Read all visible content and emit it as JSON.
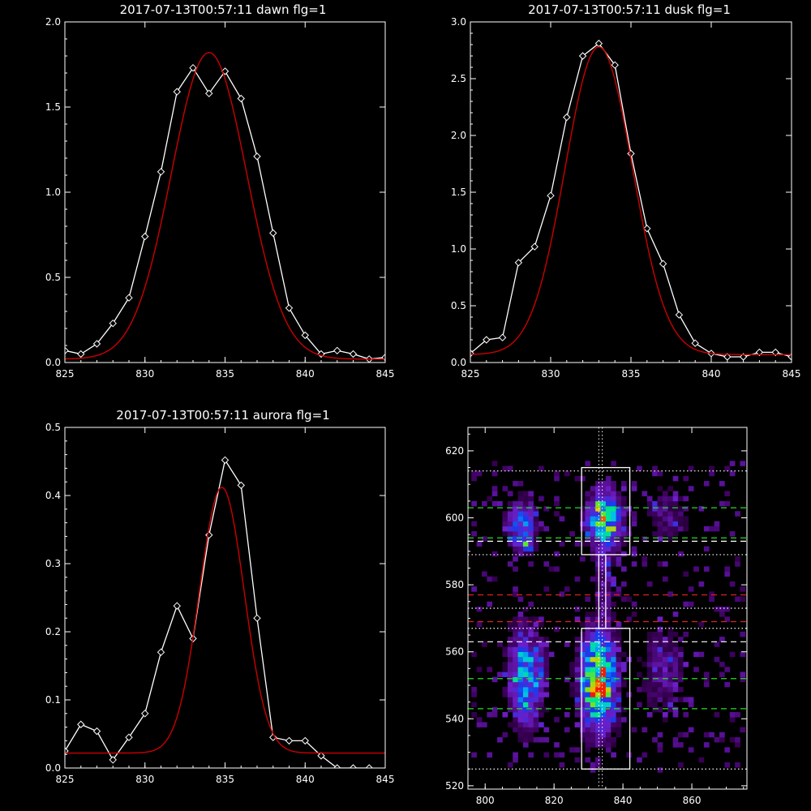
{
  "chart_data": [
    {
      "type": "line",
      "title": "2017-07-13T00:57:11 dawn flg=1",
      "xlim": [
        825,
        845
      ],
      "ylim": [
        0,
        2.0
      ],
      "x_ticks": [
        "825",
        "830",
        "835",
        "840",
        "845"
      ],
      "y_ticks": [
        "0.0",
        "0.5",
        "1.0",
        "1.5",
        "2.0"
      ],
      "series": [
        {
          "color": "#ffffff",
          "marker": "diamond",
          "x": [
            825,
            826,
            827,
            828,
            829,
            830,
            831,
            832,
            833,
            834,
            835,
            836,
            837,
            838,
            839,
            840,
            841,
            842,
            843,
            844,
            845
          ],
          "y": [
            0.07,
            0.05,
            0.11,
            0.23,
            0.38,
            0.74,
            1.12,
            1.59,
            1.73,
            1.58,
            1.71,
            1.55,
            1.21,
            0.76,
            0.32,
            0.16,
            0.05,
            0.07,
            0.05,
            0.02,
            0.03
          ]
        },
        {
          "color": "#cc0000",
          "curve": "gaussian",
          "peak": 1.8,
          "center": 834.0,
          "sigma": 2.35,
          "offset": 0.02
        }
      ]
    },
    {
      "type": "line",
      "title": "2017-07-13T00:57:11 dusk flg=1",
      "xlim": [
        825,
        845
      ],
      "ylim": [
        0,
        3.0
      ],
      "x_ticks": [
        "825",
        "830",
        "835",
        "840",
        "845"
      ],
      "y_ticks": [
        "0.0",
        "0.5",
        "1.0",
        "1.5",
        "2.0",
        "2.5",
        "3.0"
      ],
      "series": [
        {
          "color": "#ffffff",
          "marker": "diamond",
          "x": [
            825,
            826,
            827,
            828,
            829,
            830,
            831,
            832,
            833,
            834,
            835,
            836,
            837,
            838,
            839,
            840,
            841,
            842,
            843,
            844,
            845
          ],
          "y": [
            0.08,
            0.2,
            0.22,
            0.88,
            1.02,
            1.47,
            2.16,
            2.7,
            2.81,
            2.62,
            1.84,
            1.18,
            0.87,
            0.42,
            0.17,
            0.08,
            0.05,
            0.05,
            0.09,
            0.09,
            0.05
          ]
        },
        {
          "color": "#cc0000",
          "curve": "gaussian",
          "peak": 2.71,
          "center": 833.0,
          "sigma": 2.1,
          "offset": 0.07
        }
      ]
    },
    {
      "type": "line",
      "title": "2017-07-13T00:57:11 aurora flg=1",
      "xlim": [
        825,
        845
      ],
      "ylim": [
        0,
        0.5
      ],
      "x_ticks": [
        "825",
        "830",
        "835",
        "840",
        "845"
      ],
      "y_ticks": [
        "0.0",
        "0.1",
        "0.2",
        "0.3",
        "0.4",
        "0.5"
      ],
      "series": [
        {
          "color": "#ffffff",
          "marker": "diamond",
          "x": [
            825,
            826,
            827,
            828,
            829,
            830,
            831,
            832,
            833,
            834,
            835,
            836,
            837,
            838,
            839,
            840,
            841,
            842,
            843,
            844
          ],
          "y": [
            0.025,
            0.064,
            0.054,
            0.012,
            0.045,
            0.08,
            0.17,
            0.238,
            0.19,
            0.342,
            0.452,
            0.415,
            0.22,
            0.045,
            0.04,
            0.04,
            0.018,
            0.0,
            0.0,
            0.0
          ]
        },
        {
          "color": "#cc0000",
          "curve": "gaussian",
          "peak": 0.39,
          "center": 834.8,
          "sigma": 1.4,
          "offset": 0.022
        }
      ]
    },
    {
      "type": "heatmap",
      "xlim": [
        795,
        876
      ],
      "ylim": [
        519,
        627
      ],
      "x_ticks": [
        "800",
        "820",
        "840",
        "860"
      ],
      "y_ticks": [
        "520",
        "540",
        "560",
        "580",
        "600",
        "620"
      ],
      "colormap": "rainbow-on-black",
      "blobs": [
        {
          "x": 834,
          "y": 599,
          "sx": 3.5,
          "sy": 6,
          "amp": 0.75
        },
        {
          "x": 810,
          "y": 597,
          "sx": 3.0,
          "sy": 5,
          "amp": 0.5
        },
        {
          "x": 811,
          "y": 591,
          "sx": 1.5,
          "sy": 1.5,
          "amp": 0.25
        },
        {
          "x": 832,
          "y": 550,
          "sx": 3.5,
          "sy": 10,
          "amp": 0.9
        },
        {
          "x": 811,
          "y": 552,
          "sx": 3.5,
          "sy": 10,
          "amp": 0.55
        },
        {
          "x": 851,
          "y": 553,
          "sx": 4.5,
          "sy": 9,
          "amp": 0.22
        },
        {
          "x": 834,
          "y": 579,
          "sx": 2.0,
          "sy": 8,
          "amp": 0.2
        },
        {
          "x": 852,
          "y": 600,
          "sx": 4.5,
          "sy": 6,
          "amp": 0.18
        },
        {
          "x": 830,
          "y": 548,
          "sx": 1.0,
          "sy": 1.5,
          "amp": 0.3
        }
      ],
      "boxes": [
        {
          "x0": 828,
          "x1": 842,
          "y0": 589,
          "y1": 615
        },
        {
          "x0": 828,
          "x1": 842,
          "y0": 525,
          "y1": 567
        },
        {
          "x0": 833,
          "x1": 835,
          "y0": 567,
          "y1": 589
        }
      ],
      "hlines": [
        {
          "y": 614,
          "color": "#ffffff",
          "style": "dotted"
        },
        {
          "y": 603,
          "color": "#22dd22",
          "style": "dashed"
        },
        {
          "y": 594,
          "color": "#22dd22",
          "style": "dashed"
        },
        {
          "y": 593,
          "color": "#ffffff",
          "style": "dashed"
        },
        {
          "y": 589,
          "color": "#ffffff",
          "style": "dotted"
        },
        {
          "y": 577,
          "color": "#dd2222",
          "style": "dashed"
        },
        {
          "y": 573,
          "color": "#ffffff",
          "style": "dotted"
        },
        {
          "y": 569,
          "color": "#dd2222",
          "style": "dashed"
        },
        {
          "y": 567,
          "color": "#ffffff",
          "style": "dotted"
        },
        {
          "y": 563,
          "color": "#ffffff",
          "style": "dashed"
        },
        {
          "y": 552,
          "color": "#22dd22",
          "style": "dashed"
        },
        {
          "y": 543,
          "color": "#22dd22",
          "style": "dashed"
        },
        {
          "y": 525,
          "color": "#ffffff",
          "style": "dotted"
        }
      ],
      "vlines": [
        {
          "x": 833,
          "color": "#ffffff",
          "style": "dotted"
        },
        {
          "x": 834,
          "color": "#ffffff",
          "style": "dotted"
        }
      ]
    }
  ]
}
